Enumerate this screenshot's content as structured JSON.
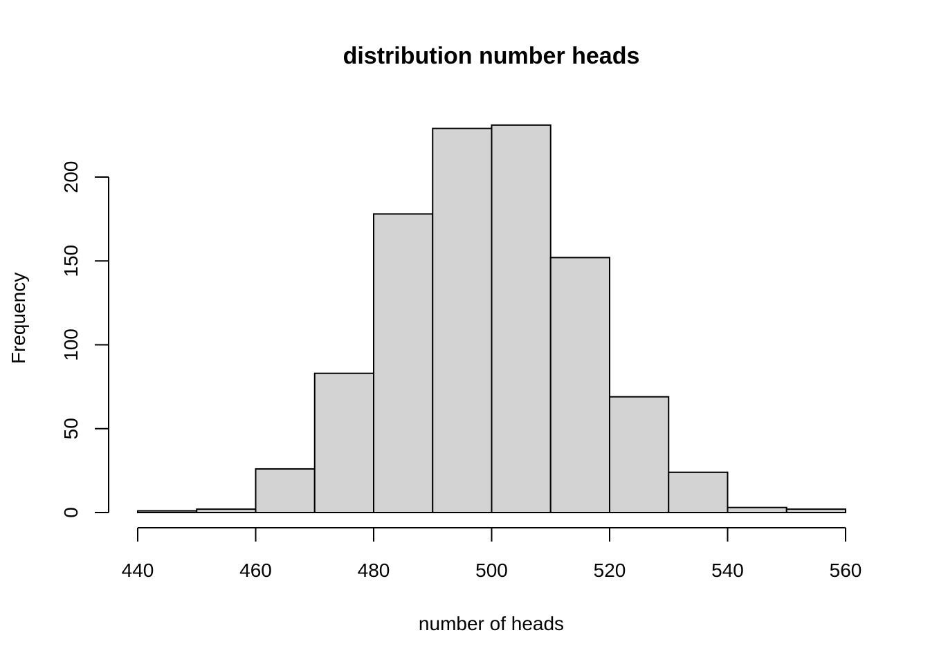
{
  "chart_data": {
    "type": "bar",
    "subtype": "histogram",
    "title": "distribution number heads",
    "xlabel": "number of heads",
    "ylabel": "Frequency",
    "bin_edges": [
      440,
      450,
      460,
      470,
      480,
      490,
      500,
      510,
      520,
      530,
      540,
      550,
      560
    ],
    "values": [
      1,
      2,
      26,
      83,
      178,
      229,
      231,
      152,
      69,
      24,
      3,
      2
    ],
    "xlim": [
      440,
      560
    ],
    "ylim": [
      0,
      231
    ],
    "x_ticks": [
      440,
      460,
      480,
      500,
      520,
      540,
      560
    ],
    "y_ticks": [
      0,
      50,
      100,
      150,
      200
    ],
    "bar_fill": "#d3d3d3",
    "bar_stroke": "#000000",
    "grid": false,
    "legend": "none"
  }
}
